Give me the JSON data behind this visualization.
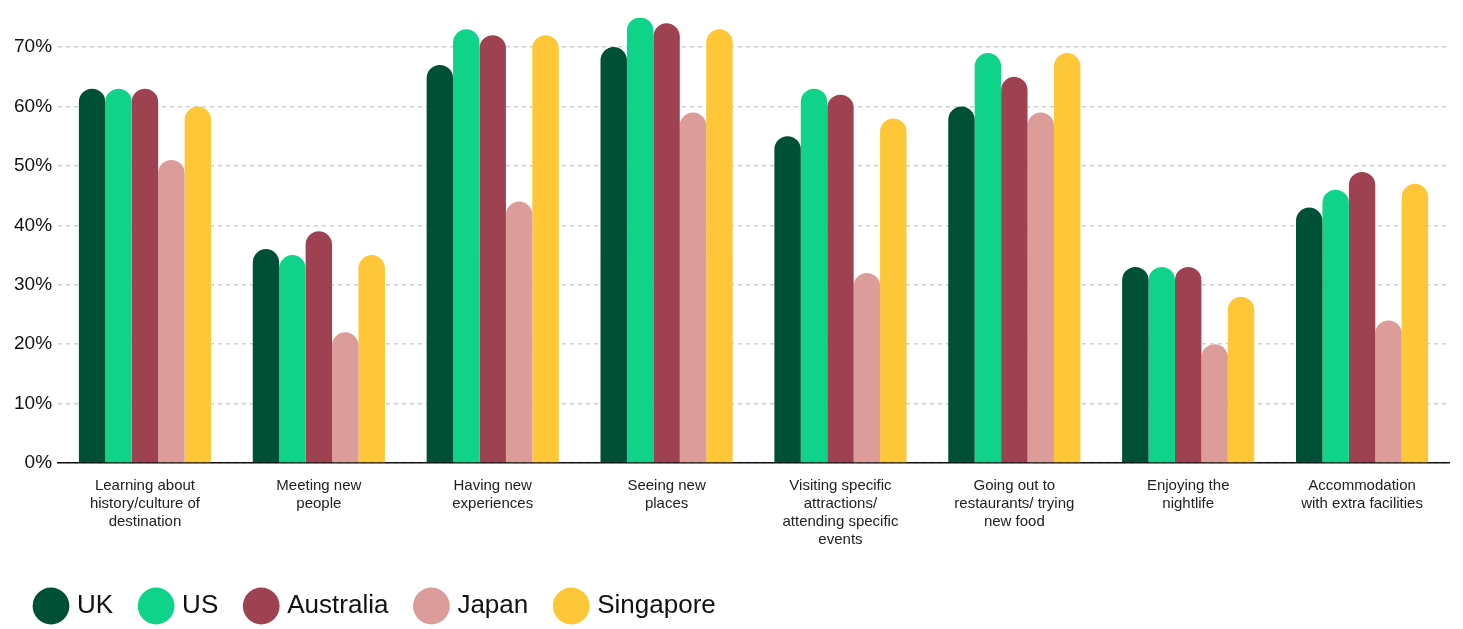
{
  "chart_data": {
    "type": "bar",
    "categories": [
      "Learning about history/culture of destination",
      "Meeting new people",
      "Having new experiences",
      "Seeing new places",
      "Visiting specific attractions/ attending specific events",
      "Going out to restaurants/ trying new food",
      "Enjoying the nightlife",
      "Accommodation with extra facilities"
    ],
    "series": [
      {
        "name": "UK",
        "color": "#005035",
        "values": [
          63,
          36,
          67,
          70,
          55,
          60,
          33,
          43
        ]
      },
      {
        "name": "US",
        "color": "#10d38a",
        "values": [
          63,
          35,
          73,
          75,
          63,
          69,
          33,
          46
        ]
      },
      {
        "name": "Australia",
        "color": "#9e4150",
        "values": [
          63,
          39,
          72,
          74,
          62,
          65,
          33,
          49
        ]
      },
      {
        "name": "Japan",
        "color": "#dc9c9a",
        "values": [
          51,
          22,
          44,
          59,
          32,
          59,
          20,
          24
        ]
      },
      {
        "name": "Singapore",
        "color": "#fec738",
        "values": [
          60,
          35,
          72,
          73,
          58,
          69,
          28,
          47
        ]
      }
    ],
    "ylim": [
      0,
      75
    ],
    "yticks": [
      {
        "value": 0,
        "label": "0%"
      },
      {
        "value": 10,
        "label": "10%"
      },
      {
        "value": 20,
        "label": "20%"
      },
      {
        "value": 30,
        "label": "30%"
      },
      {
        "value": 40,
        "label": "40%"
      },
      {
        "value": 50,
        "label": "50%"
      },
      {
        "value": 60,
        "label": "60%"
      },
      {
        "value": 70,
        "label": "70%"
      }
    ],
    "grid": "y",
    "legend": "bottom left"
  }
}
